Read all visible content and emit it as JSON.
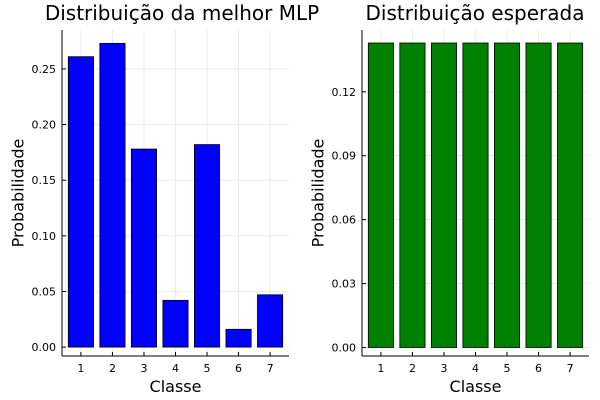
{
  "chart_data": [
    {
      "type": "bar",
      "title": "Distribuição da melhor MLP",
      "xlabel": "Classe",
      "ylabel": "Probabilidade",
      "categories": [
        "1",
        "2",
        "3",
        "4",
        "5",
        "6",
        "7"
      ],
      "values": [
        0.261,
        0.273,
        0.178,
        0.042,
        0.182,
        0.016,
        0.047
      ],
      "ylim": [
        -0.008,
        0.285
      ],
      "yticks": [
        0.0,
        0.05,
        0.1,
        0.15,
        0.2,
        0.25
      ],
      "ytick_labels": [
        "0.00",
        "0.05",
        "0.10",
        "0.15",
        "0.20",
        "0.25"
      ],
      "color": "#0000ff",
      "grid": true
    },
    {
      "type": "bar",
      "title": "Distribuição esperada",
      "xlabel": "Classe",
      "ylabel": "Probabilidade",
      "categories": [
        "1",
        "2",
        "3",
        "4",
        "5",
        "6",
        "7"
      ],
      "values": [
        0.1429,
        0.1429,
        0.1429,
        0.1429,
        0.1429,
        0.1429,
        0.1429
      ],
      "ylim": [
        -0.004,
        0.149
      ],
      "yticks": [
        0.0,
        0.03,
        0.06,
        0.09,
        0.12
      ],
      "ytick_labels": [
        "0.00",
        "0.03",
        "0.06",
        "0.09",
        "0.12"
      ],
      "color": "#008000",
      "grid": true
    }
  ]
}
